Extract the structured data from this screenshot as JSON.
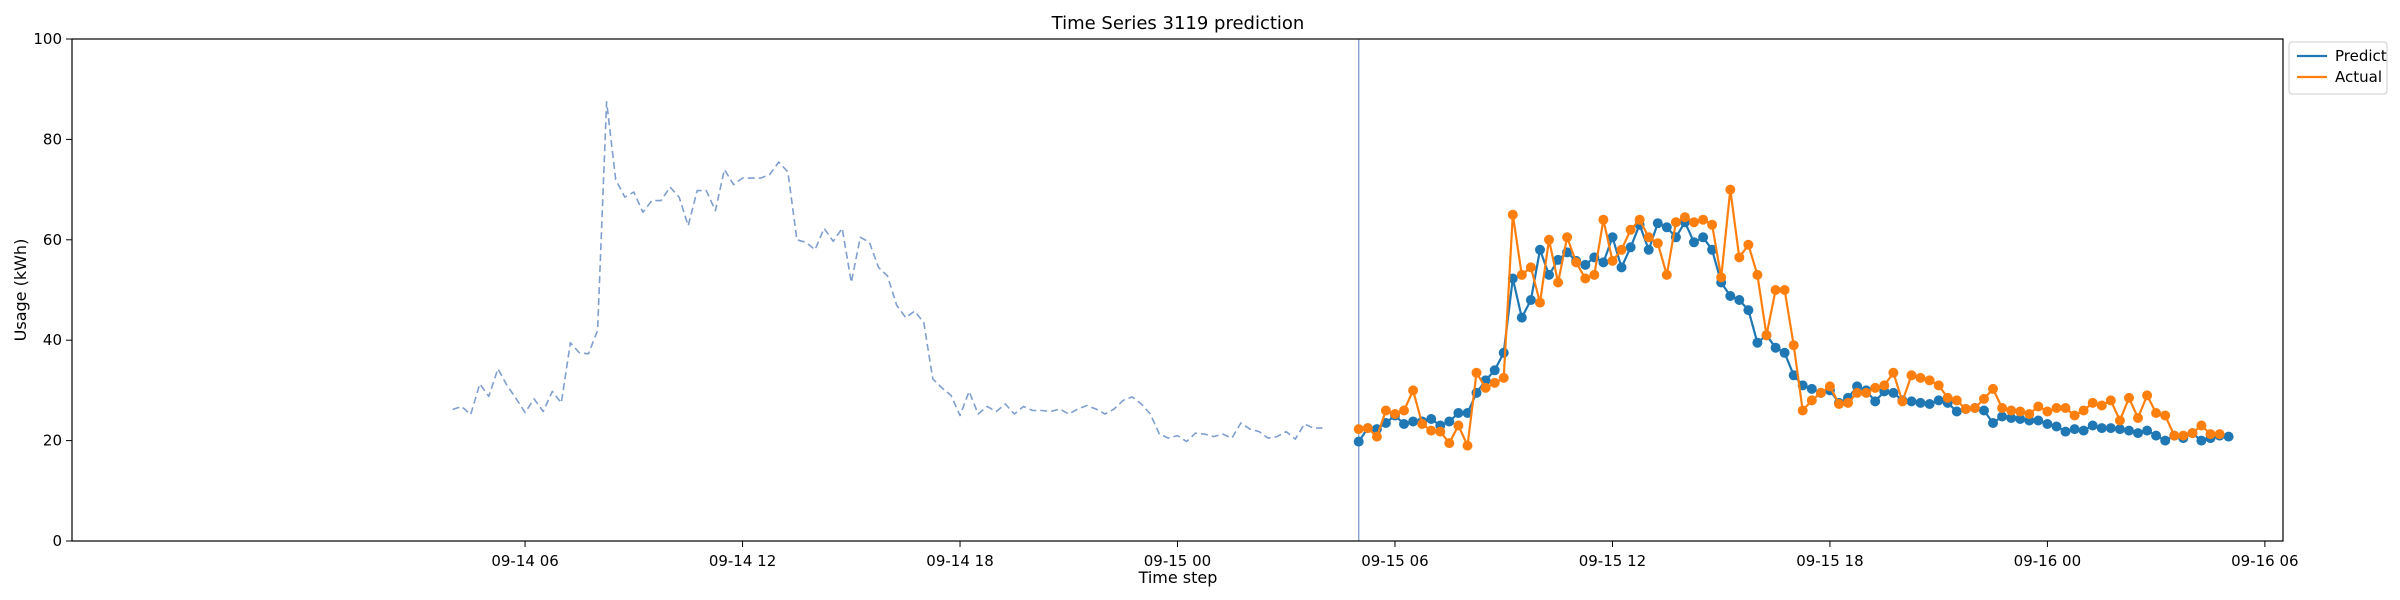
{
  "chart_data": {
    "type": "line",
    "title": "Time Series 3119 prediction",
    "xlabel": "Time step",
    "ylabel": "Usage (kWh)",
    "ylim": [
      0,
      100
    ],
    "xlim_hours": [
      -6.5,
      54.5
    ],
    "x_unit_note": "x values are hours since 09-14 00:00",
    "yticks": [
      0,
      20,
      40,
      60,
      80,
      100
    ],
    "xticks": [
      {
        "h": 6,
        "label": "09-14 06"
      },
      {
        "h": 12,
        "label": "09-14 12"
      },
      {
        "h": 18,
        "label": "09-14 18"
      },
      {
        "h": 24,
        "label": "09-15 00"
      },
      {
        "h": 30,
        "label": "09-15 06"
      },
      {
        "h": 36,
        "label": "09-15 12"
      },
      {
        "h": 42,
        "label": "09-15 18"
      },
      {
        "h": 48,
        "label": "09-16 00"
      },
      {
        "h": 54,
        "label": "09-16 06"
      }
    ],
    "split_time_h": 29.0,
    "legend_position": "top-right",
    "series": [
      {
        "name": "",
        "role": "history",
        "color": "#7f9fcf",
        "style": "dashed",
        "x_start_h": 4.0,
        "x_step_h": 0.25,
        "values": [
          26.2,
          26.8,
          25.2,
          31.3,
          28.8,
          34.3,
          31.0,
          28.4,
          25.6,
          28.3,
          25.8,
          29.8,
          27.5,
          39.5,
          37.5,
          37.3,
          42.0,
          87.5,
          72.0,
          68.5,
          69.5,
          65.5,
          67.8,
          67.8,
          70.5,
          68.5,
          62.8,
          69.8,
          69.8,
          65.8,
          74.0,
          71.0,
          72.3,
          72.3,
          72.3,
          73.0,
          75.5,
          73.5,
          60.0,
          59.5,
          58.0,
          62.3,
          59.7,
          62.3,
          51.5,
          60.5,
          59.5,
          54.5,
          52.8,
          47.0,
          44.5,
          45.8,
          43.5,
          32.3,
          30.5,
          29.0,
          25.0,
          29.8,
          25.3,
          26.8,
          25.8,
          27.3,
          25.3,
          26.8,
          26.0,
          26.0,
          25.8,
          26.3,
          25.3,
          26.3,
          27.0,
          26.3,
          25.3,
          26.3,
          28.0,
          28.7,
          27.3,
          25.3,
          21.3,
          20.5,
          21.0,
          19.8,
          21.5,
          21.3,
          20.8,
          21.3,
          20.5,
          23.5,
          22.3,
          21.8,
          20.5,
          20.8,
          21.8,
          20.3,
          23.3,
          22.5,
          22.5
        ]
      },
      {
        "name": "Predict",
        "role": "predict",
        "color": "#1f77b4",
        "style": "solid-markers",
        "x_start_h": 29.0,
        "x_step_h": 0.25,
        "values": [
          19.8,
          22.5,
          22.3,
          23.5,
          25.0,
          23.3,
          23.8,
          23.8,
          24.3,
          23.0,
          23.8,
          25.5,
          25.5,
          29.5,
          32.0,
          34.0,
          37.5,
          52.3,
          44.5,
          48.0,
          58.0,
          53.0,
          56.0,
          57.5,
          55.8,
          55.0,
          56.5,
          55.5,
          60.5,
          54.5,
          58.5,
          63.0,
          58.0,
          63.3,
          62.5,
          60.5,
          63.5,
          59.5,
          60.5,
          58.0,
          51.5,
          48.8,
          48.0,
          46.0,
          39.5,
          41.0,
          38.5,
          37.5,
          33.0,
          31.0,
          30.3,
          29.5,
          30.0,
          27.5,
          28.5,
          30.8,
          30.0,
          27.8,
          29.8,
          29.5,
          28.0,
          27.8,
          27.5,
          27.3,
          28.0,
          27.5,
          25.8,
          26.3,
          26.5,
          26.0,
          23.5,
          24.8,
          24.5,
          24.3,
          24.0,
          24.0,
          23.3,
          22.8,
          21.8,
          22.3,
          22.0,
          23.0,
          22.5,
          22.5,
          22.3,
          22.0,
          21.5,
          22.0,
          21.0,
          20.0,
          21.0,
          20.5,
          21.5,
          20.0,
          20.5,
          21.0,
          20.8
        ]
      },
      {
        "name": "Actual",
        "role": "actual",
        "color": "#ff7f0e",
        "style": "solid-markers",
        "x_start_h": 29.0,
        "x_step_h": 0.25,
        "values": [
          22.3,
          22.5,
          20.8,
          26.0,
          25.3,
          26.0,
          30.0,
          23.3,
          22.0,
          21.8,
          19.5,
          23.0,
          19.0,
          33.5,
          30.5,
          31.5,
          32.5,
          65.0,
          53.0,
          54.5,
          47.5,
          60.0,
          51.5,
          60.5,
          55.5,
          52.3,
          53.0,
          64.0,
          55.8,
          58.0,
          62.0,
          64.0,
          60.5,
          59.3,
          53.0,
          63.5,
          64.5,
          63.5,
          64.0,
          63.0,
          52.5,
          70.0,
          56.5,
          59.0,
          53.0,
          41.0,
          50.0,
          50.0,
          39.0,
          26.0,
          28.0,
          29.5,
          30.8,
          27.3,
          27.5,
          29.5,
          29.5,
          30.5,
          31.0,
          33.5,
          27.8,
          33.0,
          32.5,
          32.0,
          31.0,
          28.5,
          28.0,
          26.3,
          26.5,
          28.3,
          30.3,
          26.5,
          26.0,
          25.8,
          25.3,
          26.8,
          25.8,
          26.5,
          26.5,
          25.0,
          26.0,
          27.5,
          27.0,
          28.0,
          24.0,
          28.5,
          24.5,
          29.0,
          25.5,
          25.0,
          21.0,
          21.0,
          21.5,
          23.0,
          21.3,
          21.3
        ]
      }
    ]
  }
}
